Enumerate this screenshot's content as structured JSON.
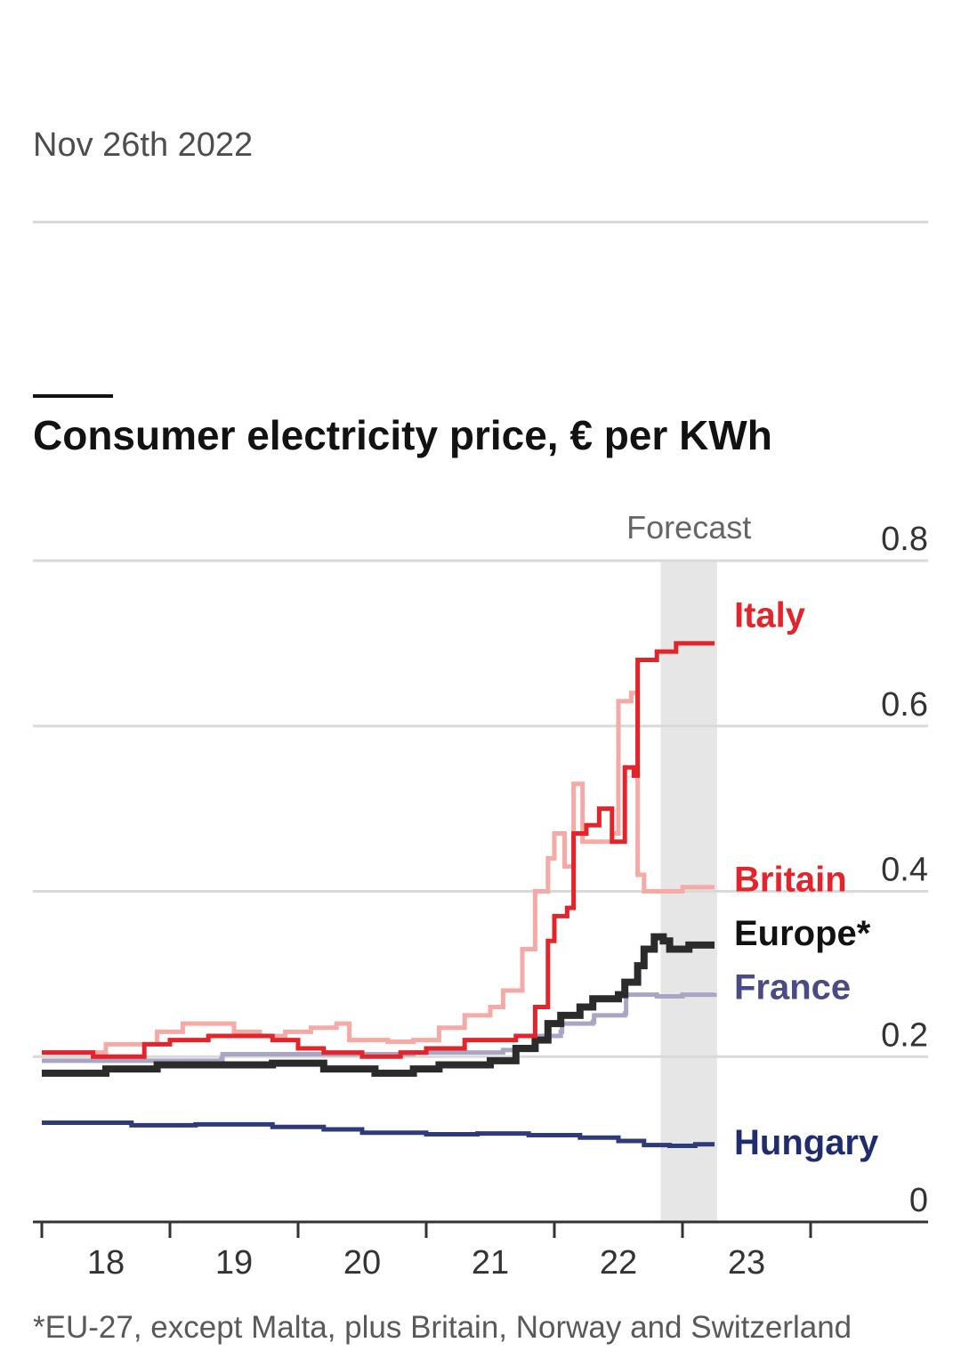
{
  "dateline": "Nov 26th 2022",
  "chart_title": "Consumer electricity price, € per KWh",
  "footnote": "*EU-27, except Malta, plus Britain, Norway and Switzerland",
  "forecast_label": "Forecast",
  "chart_data": {
    "type": "line",
    "title": "Consumer electricity price, € per KWh",
    "xlabel": "",
    "ylabel": "",
    "xlim": [
      2017.9,
      2023.8
    ],
    "ylim": [
      0,
      0.8
    ],
    "x_ticks": [
      2018,
      2019,
      2020,
      2021,
      2022,
      2023,
      2024
    ],
    "x_tick_labels": [
      "18",
      "19",
      "20",
      "21",
      "22",
      "23"
    ],
    "x_label_positions": [
      2018.5,
      2019.5,
      2020.5,
      2021.5,
      2022.5,
      2023.5
    ],
    "y_ticks": [
      0,
      0.2,
      0.4,
      0.6,
      0.8
    ],
    "y_tick_labels": [
      "0",
      "0.2",
      "0.4",
      "0.6",
      "0.8"
    ],
    "forecast_range": [
      2022.83,
      2023.27
    ],
    "grid": true,
    "series": [
      {
        "name": "Hungary",
        "color": "#2e3a7a",
        "width": 5,
        "points": [
          [
            2018.0,
            0.12
          ],
          [
            2018.3,
            0.12
          ],
          [
            2018.7,
            0.117
          ],
          [
            2019.2,
            0.118
          ],
          [
            2019.8,
            0.115
          ],
          [
            2020.2,
            0.112
          ],
          [
            2020.5,
            0.108
          ],
          [
            2021.0,
            0.106
          ],
          [
            2021.4,
            0.107
          ],
          [
            2021.8,
            0.105
          ],
          [
            2022.2,
            0.102
          ],
          [
            2022.5,
            0.098
          ],
          [
            2022.7,
            0.093
          ],
          [
            2022.9,
            0.092
          ],
          [
            2023.1,
            0.094
          ],
          [
            2023.25,
            0.094
          ]
        ]
      },
      {
        "name": "France",
        "color": "#a8a6c4",
        "width": 5,
        "points": [
          [
            2018.0,
            0.195
          ],
          [
            2019.4,
            0.197
          ],
          [
            2019.41,
            0.203
          ],
          [
            2020.9,
            0.205
          ],
          [
            2021.6,
            0.208
          ],
          [
            2021.85,
            0.212
          ],
          [
            2021.86,
            0.225
          ],
          [
            2022.05,
            0.23
          ],
          [
            2022.06,
            0.24
          ],
          [
            2022.3,
            0.242
          ],
          [
            2022.31,
            0.25
          ],
          [
            2022.55,
            0.252
          ],
          [
            2022.56,
            0.275
          ],
          [
            2022.8,
            0.273
          ],
          [
            2023.0,
            0.275
          ],
          [
            2023.25,
            0.277
          ]
        ]
      },
      {
        "name": "Europe*",
        "color": "#2b2b2b",
        "width": 8,
        "points": [
          [
            2018.0,
            0.18
          ],
          [
            2018.5,
            0.185
          ],
          [
            2018.9,
            0.19
          ],
          [
            2019.4,
            0.19
          ],
          [
            2019.8,
            0.192
          ],
          [
            2020.2,
            0.185
          ],
          [
            2020.6,
            0.18
          ],
          [
            2020.9,
            0.185
          ],
          [
            2021.1,
            0.19
          ],
          [
            2021.3,
            0.19
          ],
          [
            2021.5,
            0.195
          ],
          [
            2021.7,
            0.21
          ],
          [
            2021.85,
            0.22
          ],
          [
            2021.95,
            0.24
          ],
          [
            2022.05,
            0.25
          ],
          [
            2022.2,
            0.26
          ],
          [
            2022.3,
            0.27
          ],
          [
            2022.5,
            0.275
          ],
          [
            2022.55,
            0.29
          ],
          [
            2022.65,
            0.31
          ],
          [
            2022.7,
            0.33
          ],
          [
            2022.78,
            0.345
          ],
          [
            2022.85,
            0.34
          ],
          [
            2022.9,
            0.33
          ],
          [
            2023.05,
            0.335
          ],
          [
            2023.25,
            0.335
          ]
        ]
      },
      {
        "name": "Britain",
        "color": "#f5aaa6",
        "width": 5,
        "points": [
          [
            2018.0,
            0.205
          ],
          [
            2018.5,
            0.215
          ],
          [
            2018.9,
            0.23
          ],
          [
            2019.1,
            0.24
          ],
          [
            2019.3,
            0.24
          ],
          [
            2019.5,
            0.23
          ],
          [
            2019.7,
            0.225
          ],
          [
            2019.9,
            0.23
          ],
          [
            2020.1,
            0.235
          ],
          [
            2020.3,
            0.24
          ],
          [
            2020.4,
            0.22
          ],
          [
            2020.7,
            0.218
          ],
          [
            2020.9,
            0.22
          ],
          [
            2021.1,
            0.235
          ],
          [
            2021.3,
            0.25
          ],
          [
            2021.5,
            0.26
          ],
          [
            2021.6,
            0.28
          ],
          [
            2021.75,
            0.33
          ],
          [
            2021.85,
            0.4
          ],
          [
            2021.95,
            0.44
          ],
          [
            2022.0,
            0.47
          ],
          [
            2022.08,
            0.43
          ],
          [
            2022.15,
            0.53
          ],
          [
            2022.22,
            0.46
          ],
          [
            2022.3,
            0.46
          ],
          [
            2022.45,
            0.47
          ],
          [
            2022.5,
            0.63
          ],
          [
            2022.6,
            0.64
          ],
          [
            2022.65,
            0.42
          ],
          [
            2022.7,
            0.4
          ],
          [
            2022.85,
            0.4
          ],
          [
            2023.0,
            0.405
          ],
          [
            2023.25,
            0.405
          ]
        ]
      },
      {
        "name": "Italy",
        "color": "#e3242b",
        "width": 5,
        "points": [
          [
            2018.0,
            0.205
          ],
          [
            2018.4,
            0.2
          ],
          [
            2018.8,
            0.215
          ],
          [
            2019.0,
            0.22
          ],
          [
            2019.3,
            0.225
          ],
          [
            2019.5,
            0.225
          ],
          [
            2019.8,
            0.22
          ],
          [
            2020.0,
            0.21
          ],
          [
            2020.2,
            0.205
          ],
          [
            2020.5,
            0.2
          ],
          [
            2020.8,
            0.205
          ],
          [
            2021.0,
            0.21
          ],
          [
            2021.3,
            0.22
          ],
          [
            2021.5,
            0.22
          ],
          [
            2021.7,
            0.225
          ],
          [
            2021.85,
            0.26
          ],
          [
            2021.95,
            0.34
          ],
          [
            2022.0,
            0.37
          ],
          [
            2022.1,
            0.38
          ],
          [
            2022.15,
            0.47
          ],
          [
            2022.25,
            0.48
          ],
          [
            2022.35,
            0.5
          ],
          [
            2022.45,
            0.46
          ],
          [
            2022.55,
            0.55
          ],
          [
            2022.62,
            0.54
          ],
          [
            2022.65,
            0.68
          ],
          [
            2022.8,
            0.69
          ],
          [
            2022.95,
            0.7
          ],
          [
            2023.25,
            0.7
          ]
        ]
      }
    ],
    "labels": [
      {
        "text": "Italy",
        "color": "#e3242b",
        "y": 0.735
      },
      {
        "text": "Britain",
        "color": "#e3242b",
        "y": 0.415
      },
      {
        "text": "Europe*",
        "color": "#121212",
        "y": 0.35
      },
      {
        "text": "France",
        "color": "#4a4a86",
        "y": 0.285
      },
      {
        "text": "Hungary",
        "color": "#1f2d6e",
        "y": 0.097
      }
    ]
  }
}
